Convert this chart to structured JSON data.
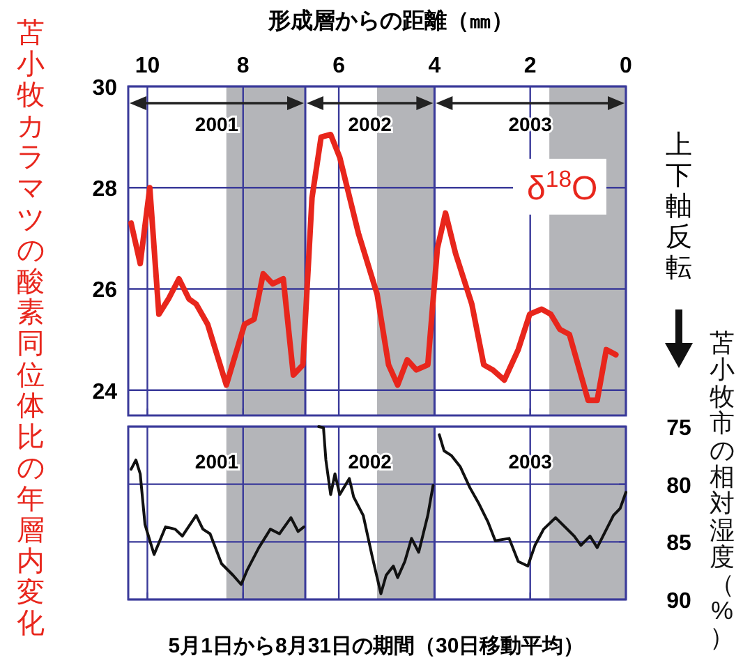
{
  "chart_data": [
    {
      "type": "line",
      "xlabel": "形成層からの距離（㎜）",
      "ylabel": "苫小牧カラマツの酸素同位体比の年層内変化",
      "xlim": [
        10.4,
        0
      ],
      "xticks": [
        10,
        8,
        6,
        4,
        2,
        0
      ],
      "ylim": [
        23.5,
        30
      ],
      "yticks": [
        24,
        26,
        28,
        30
      ],
      "grid": true,
      "legend": false,
      "marker": "none",
      "line_style": "solid",
      "series": [
        {
          "name": "δ$^{18}$O",
          "color": "#e8261c",
          "x": [
            10.34,
            10.15,
            9.95,
            9.76,
            9.56,
            9.34,
            9.13,
            8.98,
            8.74,
            8.35,
            7.97,
            7.77,
            7.58,
            7.38,
            7.16,
            6.95,
            6.75,
            6.56,
            6.37,
            6.17,
            5.98,
            5.59,
            5.2,
            4.96,
            4.77,
            4.57,
            4.38,
            4.14,
            3.94,
            3.77,
            3.56,
            3.22,
            2.97,
            2.78,
            2.54,
            2.25,
            2.01,
            1.76,
            1.57,
            1.38,
            1.18,
            0.79,
            0.6,
            0.41,
            0.21
          ],
          "values": [
            27.3,
            26.5,
            28.0,
            25.5,
            25.8,
            26.2,
            25.8,
            25.7,
            25.3,
            24.1,
            25.3,
            25.4,
            26.3,
            26.1,
            26.2,
            24.3,
            24.5,
            27.8,
            29.0,
            29.05,
            28.6,
            27.1,
            25.9,
            24.5,
            24.1,
            24.6,
            24.4,
            24.5,
            26.8,
            27.5,
            26.7,
            25.7,
            24.5,
            24.4,
            24.2,
            24.8,
            25.5,
            25.6,
            25.5,
            25.2,
            25.1,
            23.8,
            23.8,
            24.8,
            24.7
          ]
        }
      ],
      "bands": [
        {
          "axis": "x",
          "from": 8.35,
          "to": 6.7,
          "color": "#b4b5b9"
        },
        {
          "axis": "x",
          "from": 5.2,
          "to": 4.0,
          "color": "#b4b5b9"
        },
        {
          "axis": "x",
          "from": 1.6,
          "to": 0,
          "color": "#b4b5b9"
        }
      ],
      "ref_lines": [
        {
          "axis": "x",
          "value": 6.7,
          "color": "#3a3a9a"
        },
        {
          "axis": "x",
          "value": 4.0,
          "color": "#3a3a9a"
        }
      ],
      "annotations": [
        "2001",
        "2002",
        "2003"
      ]
    },
    {
      "type": "line",
      "xlabel": "5月1日から8月31日の期間（30日移動平均）",
      "y2label": "苫小牧市の相対湿度（%）",
      "tick_labels": "y",
      "xlim": [
        10.4,
        0
      ],
      "xticks": [
        {
          "value": 10,
          "label": null
        },
        {
          "value": 8,
          "label": null
        },
        {
          "value": 6,
          "label": null
        },
        {
          "value": 4,
          "label": null
        },
        {
          "value": 2,
          "label": null
        },
        {
          "value": 0,
          "label": null
        }
      ],
      "y2lim": [
        90,
        75
      ],
      "y2ticks": [
        75,
        80,
        85,
        90
      ],
      "grid": true,
      "marker": "none",
      "line_style": "solid",
      "series": [
        {
          "color": "#111111",
          "axis": "y2",
          "x": [
            10.34,
            10.24,
            10.15,
            10.05,
            9.86,
            9.62,
            9.42,
            9.27,
            8.98,
            8.84,
            8.69,
            8.45,
            8.21,
            8.04,
            7.92,
            7.67,
            7.43,
            7.24,
            7.0,
            6.85,
            6.73,
            null,
            6.42,
            6.32,
            6.27,
            6.17,
            6.08,
            5.98,
            5.78,
            5.69,
            5.49,
            5.3,
            5.12,
            5.01,
            4.86,
            4.77,
            4.62,
            4.48,
            4.33,
            4.14,
            4.03,
            null,
            3.9,
            3.8,
            3.65,
            3.46,
            3.26,
            3.07,
            2.88,
            2.73,
            2.44,
            2.25,
            2.05,
            1.9,
            1.72,
            1.47,
            1.08,
            0.94,
            0.75,
            0.6,
            0.26,
            0.12,
            0.0
          ],
          "values": [
            78.7,
            77.9,
            79.1,
            83.5,
            86.1,
            83.7,
            83.9,
            84.5,
            82.7,
            83.9,
            84.3,
            86.9,
            87.9,
            88.7,
            87.5,
            85.5,
            83.9,
            84.3,
            82.9,
            84.1,
            83.7,
            null,
            75.0,
            75.1,
            77.9,
            80.9,
            79.1,
            80.9,
            79.5,
            81.1,
            82.7,
            86.3,
            89.5,
            87.9,
            87.1,
            88.1,
            86.7,
            84.7,
            85.9,
            82.7,
            80.1,
            null,
            75.7,
            77.1,
            77.5,
            78.5,
            80.3,
            81.7,
            83.3,
            84.9,
            84.7,
            86.7,
            87.1,
            85.3,
            83.9,
            82.9,
            84.5,
            85.3,
            84.5,
            85.5,
            82.7,
            82.1,
            80.7
          ]
        }
      ],
      "bands": [
        {
          "axis": "x",
          "from": 8.35,
          "to": 6.7,
          "color": "#b4b5b9"
        },
        {
          "axis": "x",
          "from": 5.2,
          "to": 4.0,
          "color": "#b4b5b9"
        },
        {
          "axis": "x",
          "from": 1.6,
          "to": 0,
          "color": "#b4b5b9"
        }
      ],
      "ref_lines": [
        {
          "axis": "x",
          "value": 6.7,
          "color": "#3a3a9a"
        },
        {
          "axis": "x",
          "value": 4.0,
          "color": "#3a3a9a"
        }
      ],
      "annotations": [
        "2001",
        "2002",
        "2003",
        "上下軸反転"
      ]
    }
  ]
}
